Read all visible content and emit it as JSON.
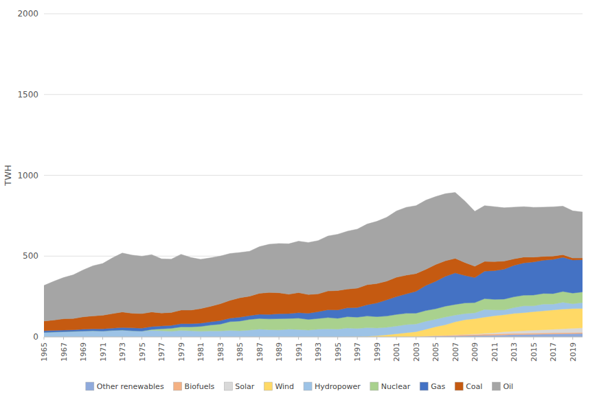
{
  "chart_data": {
    "type": "area",
    "stacked": true,
    "ylabel": "TWH",
    "x": [
      1965,
      1966,
      1967,
      1968,
      1969,
      1970,
      1971,
      1972,
      1973,
      1974,
      1975,
      1976,
      1977,
      1978,
      1979,
      1980,
      1981,
      1982,
      1983,
      1984,
      1985,
      1986,
      1987,
      1988,
      1989,
      1990,
      1991,
      1992,
      1993,
      1994,
      1995,
      1996,
      1997,
      1998,
      1999,
      2000,
      2001,
      2002,
      2003,
      2004,
      2005,
      2006,
      2007,
      2008,
      2009,
      2010,
      2011,
      2012,
      2013,
      2014,
      2015,
      2016,
      2017,
      2018,
      2019,
      2020
    ],
    "series": [
      {
        "name": "Other renewables",
        "color": "#8faadc",
        "values": [
          0,
          0,
          0,
          0,
          0,
          0,
          0,
          0,
          0,
          0,
          0,
          0,
          0,
          0,
          0,
          0,
          0,
          0,
          0,
          0,
          0,
          0,
          0,
          0,
          0,
          0,
          0,
          0,
          0,
          0,
          0,
          0,
          0,
          0,
          0,
          0,
          1,
          2,
          2,
          3,
          4,
          5,
          6,
          7,
          8,
          9,
          10,
          12,
          14,
          15,
          16,
          17,
          18,
          19,
          20,
          21
        ]
      },
      {
        "name": "Biofuels",
        "color": "#f4b183",
        "values": [
          0,
          0,
          0,
          0,
          0,
          0,
          0,
          0,
          0,
          0,
          0,
          0,
          0,
          0,
          0,
          0,
          0,
          0,
          0,
          0,
          0,
          0,
          0,
          0,
          0,
          0,
          0,
          0,
          0,
          0,
          0,
          0,
          0,
          0,
          0,
          0,
          0,
          0,
          0,
          2,
          4,
          5,
          6,
          7,
          7,
          8,
          8,
          8,
          7,
          7,
          7,
          7,
          7,
          7,
          7,
          7
        ]
      },
      {
        "name": "Solar",
        "color": "#d9d9d9",
        "values": [
          0,
          0,
          0,
          0,
          0,
          0,
          0,
          0,
          0,
          0,
          0,
          0,
          0,
          0,
          0,
          0,
          0,
          0,
          0,
          0,
          0,
          0,
          0,
          0,
          0,
          0,
          0,
          0,
          0,
          0,
          0,
          0,
          0,
          0,
          0,
          0,
          0,
          0,
          0,
          0,
          0,
          0,
          1,
          2,
          3,
          5,
          8,
          12,
          14,
          16,
          18,
          20,
          22,
          24,
          26,
          28
        ]
      },
      {
        "name": "Wind",
        "color": "#ffd966",
        "values": [
          0,
          0,
          0,
          0,
          0,
          0,
          0,
          0,
          0,
          0,
          0,
          0,
          0,
          0,
          0,
          0,
          0,
          0,
          0,
          0,
          0,
          0,
          0,
          0,
          0,
          0,
          0,
          0,
          0,
          0,
          0,
          1,
          2,
          3,
          7,
          13,
          18,
          24,
          30,
          42,
          55,
          65,
          80,
          90,
          95,
          100,
          105,
          105,
          110,
          112,
          115,
          117,
          120,
          122,
          122,
          120
        ]
      },
      {
        "name": "Hydropower",
        "color": "#9dc3e6",
        "values": [
          28,
          30,
          32,
          34,
          36,
          38,
          36,
          40,
          42,
          38,
          36,
          40,
          38,
          35,
          40,
          38,
          35,
          37,
          37,
          40,
          38,
          42,
          48,
          45,
          43,
          48,
          46,
          42,
          48,
          50,
          48,
          54,
          50,
          54,
          48,
          46,
          48,
          50,
          48,
          50,
          46,
          48,
          42,
          38,
          36,
          48,
          36,
          30,
          36,
          42,
          36,
          42,
          36,
          42,
          30,
          36
        ]
      },
      {
        "name": "Nuclear",
        "color": "#a9d18e",
        "values": [
          0,
          0,
          0,
          0,
          0,
          0,
          0,
          0,
          0,
          0,
          0,
          6,
          12,
          18,
          22,
          24,
          30,
          36,
          42,
          54,
          60,
          66,
          66,
          66,
          70,
          66,
          70,
          66,
          66,
          70,
          67,
          70,
          70,
          72,
          70,
          70,
          72,
          70,
          67,
          66,
          65,
          67,
          66,
          66,
          63,
          67,
          65,
          67,
          67,
          66,
          67,
          66,
          65,
          67,
          66,
          66
        ]
      },
      {
        "name": "Gas",
        "color": "#4472c4",
        "values": [
          10,
          10,
          10,
          10,
          12,
          12,
          14,
          14,
          16,
          18,
          18,
          18,
          18,
          18,
          20,
          20,
          20,
          20,
          22,
          22,
          24,
          24,
          26,
          28,
          30,
          30,
          34,
          38,
          42,
          48,
          52,
          55,
          60,
          70,
          85,
          100,
          110,
          120,
          135,
          155,
          170,
          185,
          195,
          170,
          155,
          170,
          178,
          185,
          195,
          200,
          205,
          205,
          212,
          212,
          205,
          200
        ]
      },
      {
        "name": "Coal",
        "color": "#c55a11",
        "values": [
          60,
          64,
          70,
          70,
          76,
          80,
          84,
          90,
          96,
          90,
          90,
          90,
          80,
          80,
          84,
          84,
          90,
          96,
          104,
          110,
          120,
          120,
          130,
          136,
          130,
          120,
          124,
          116,
          110,
          116,
          120,
          116,
          120,
          124,
          120,
          116,
          120,
          116,
          110,
          100,
          104,
          96,
          90,
          80,
          70,
          60,
          56,
          50,
          40,
          36,
          30,
          24,
          20,
          16,
          12,
          10
        ]
      },
      {
        "name": "Oil",
        "color": "#a5a5a5",
        "values": [
          220,
          240,
          255,
          270,
          290,
          310,
          320,
          345,
          365,
          360,
          355,
          355,
          335,
          330,
          345,
          325,
          305,
          300,
          295,
          290,
          280,
          278,
          288,
          298,
          305,
          312,
          318,
          322,
          330,
          340,
          348,
          358,
          365,
          375,
          385,
          395,
          410,
          420,
          420,
          428,
          420,
          415,
          408,
          380,
          340,
          345,
          340,
          330,
          320,
          312,
          308,
          305,
          305,
          300,
          292,
          285
        ]
      }
    ],
    "xlim": [
      1965,
      2020
    ],
    "xticks": [
      1965,
      1967,
      1969,
      1971,
      1973,
      1975,
      1977,
      1979,
      1981,
      1983,
      1985,
      1987,
      1989,
      1991,
      1993,
      1995,
      1997,
      1999,
      2001,
      2003,
      2005,
      2007,
      2009,
      2011,
      2013,
      2015,
      2017,
      2019
    ],
    "ylim": [
      0,
      2000
    ],
    "yticks": [
      0,
      500,
      1000,
      1500,
      2000
    ],
    "grid": "y",
    "legend": "bottom"
  }
}
